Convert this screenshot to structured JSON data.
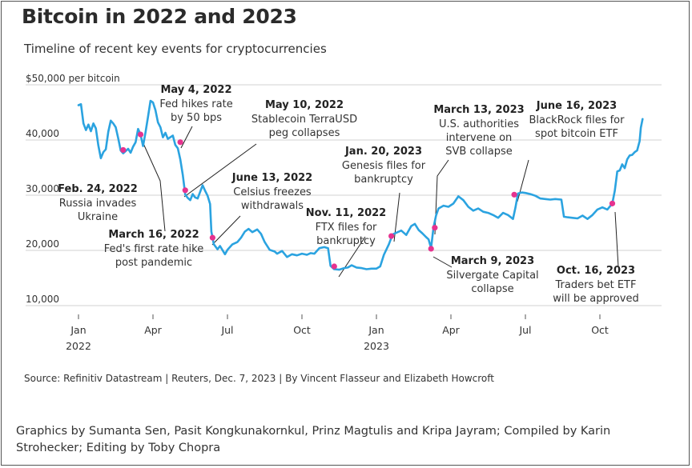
{
  "title": "Bitcoin in 2022 and 2023",
  "subtitle": "Timeline of recent key events for cryptocurrencies",
  "source": "Source: Refinitiv Datastream | Reuters, Dec. 7, 2023 | By Vincent Flasseur and Elizabeth Howcroft",
  "credits": "Graphics by Sumanta Sen, Pasit Kongkunakornkul, Prinz Magtulis and Kripa Jayram; Compiled by Karin Strohecker; Editing by Toby Chopra",
  "colors": {
    "line": "#2ba3e0",
    "event": "#e6338f",
    "grid": "#d0d0d0",
    "text": "#222222"
  },
  "chart_data": {
    "type": "line",
    "title": "Bitcoin in 2022 and 2023",
    "ylabel": "$50,000 per bitcoin",
    "ylim": [
      10000,
      50000
    ],
    "yticks": [
      {
        "value": 50000,
        "label": "$50,000 per bitcoin"
      },
      {
        "value": 40000,
        "label": "40,000"
      },
      {
        "value": 30000,
        "label": "30,000"
      },
      {
        "value": 20000,
        "label": "20,000"
      },
      {
        "value": 10000,
        "label": "10,000"
      }
    ],
    "xticks": [
      {
        "month": 0,
        "label": "Jan",
        "sub": "2022"
      },
      {
        "month": 3,
        "label": "Apr",
        "sub": ""
      },
      {
        "month": 6,
        "label": "Jul",
        "sub": ""
      },
      {
        "month": 9,
        "label": "Oct",
        "sub": ""
      },
      {
        "month": 12,
        "label": "Jan",
        "sub": "2023"
      },
      {
        "month": 15,
        "label": "Apr",
        "sub": ""
      },
      {
        "month": 18,
        "label": "Jul",
        "sub": ""
      },
      {
        "month": 21,
        "label": "Oct",
        "sub": ""
      }
    ],
    "series": [
      {
        "name": "Bitcoin price (USD)",
        "points": [
          [
            0.0,
            46300
          ],
          [
            0.1,
            46500
          ],
          [
            0.2,
            43000
          ],
          [
            0.3,
            41800
          ],
          [
            0.4,
            42800
          ],
          [
            0.5,
            41600
          ],
          [
            0.6,
            43000
          ],
          [
            0.7,
            42100
          ],
          [
            0.8,
            39000
          ],
          [
            0.9,
            36700
          ],
          [
            1.0,
            37800
          ],
          [
            1.1,
            38300
          ],
          [
            1.2,
            41500
          ],
          [
            1.3,
            43500
          ],
          [
            1.4,
            43000
          ],
          [
            1.5,
            42300
          ],
          [
            1.6,
            40300
          ],
          [
            1.7,
            38100
          ],
          [
            1.8,
            37600
          ],
          [
            2.0,
            38400
          ],
          [
            2.1,
            37700
          ],
          [
            2.2,
            38800
          ],
          [
            2.3,
            39600
          ],
          [
            2.4,
            42000
          ],
          [
            2.5,
            41000
          ],
          [
            2.6,
            38900
          ],
          [
            2.7,
            41400
          ],
          [
            2.8,
            44200
          ],
          [
            2.9,
            47100
          ],
          [
            3.0,
            46800
          ],
          [
            3.1,
            45400
          ],
          [
            3.2,
            43200
          ],
          [
            3.3,
            42300
          ],
          [
            3.4,
            40500
          ],
          [
            3.5,
            41300
          ],
          [
            3.6,
            40200
          ],
          [
            3.8,
            40800
          ],
          [
            3.9,
            39100
          ],
          [
            4.0,
            38500
          ],
          [
            4.1,
            36500
          ],
          [
            4.2,
            33700
          ],
          [
            4.3,
            30100
          ],
          [
            4.4,
            29500
          ],
          [
            4.5,
            29100
          ],
          [
            4.6,
            30200
          ],
          [
            4.7,
            29600
          ],
          [
            4.8,
            29400
          ],
          [
            5.0,
            31800
          ],
          [
            5.1,
            30800
          ],
          [
            5.2,
            29900
          ],
          [
            5.3,
            28400
          ],
          [
            5.35,
            23400
          ],
          [
            5.45,
            21100
          ],
          [
            5.6,
            20200
          ],
          [
            5.7,
            20800
          ],
          [
            5.9,
            19300
          ],
          [
            6.0,
            20100
          ],
          [
            6.2,
            21100
          ],
          [
            6.4,
            21500
          ],
          [
            6.55,
            22300
          ],
          [
            6.7,
            23400
          ],
          [
            6.85,
            23900
          ],
          [
            7.0,
            23300
          ],
          [
            7.2,
            23800
          ],
          [
            7.35,
            23000
          ],
          [
            7.5,
            21500
          ],
          [
            7.7,
            20100
          ],
          [
            7.9,
            19800
          ],
          [
            8.0,
            19400
          ],
          [
            8.2,
            19900
          ],
          [
            8.4,
            18800
          ],
          [
            8.6,
            19300
          ],
          [
            8.8,
            19100
          ],
          [
            9.0,
            19400
          ],
          [
            9.2,
            19200
          ],
          [
            9.35,
            19500
          ],
          [
            9.5,
            19400
          ],
          [
            9.7,
            20400
          ],
          [
            9.9,
            20600
          ],
          [
            10.05,
            20400
          ],
          [
            10.15,
            17200
          ],
          [
            10.3,
            16600
          ],
          [
            10.5,
            16500
          ],
          [
            10.7,
            16800
          ],
          [
            10.85,
            16900
          ],
          [
            11.0,
            17300
          ],
          [
            11.2,
            16900
          ],
          [
            11.4,
            16800
          ],
          [
            11.6,
            16600
          ],
          [
            11.8,
            16700
          ],
          [
            12.0,
            16700
          ],
          [
            12.15,
            17100
          ],
          [
            12.3,
            19200
          ],
          [
            12.5,
            21100
          ],
          [
            12.65,
            22900
          ],
          [
            12.8,
            23200
          ],
          [
            13.0,
            23600
          ],
          [
            13.2,
            22800
          ],
          [
            13.4,
            24400
          ],
          [
            13.55,
            24800
          ],
          [
            13.7,
            23700
          ],
          [
            13.85,
            23100
          ],
          [
            14.0,
            22400
          ],
          [
            14.1,
            22000
          ],
          [
            14.2,
            20400
          ],
          [
            14.3,
            24200
          ],
          [
            14.4,
            26300
          ],
          [
            14.5,
            27600
          ],
          [
            14.7,
            28100
          ],
          [
            14.9,
            27900
          ],
          [
            15.1,
            28500
          ],
          [
            15.3,
            29800
          ],
          [
            15.5,
            29100
          ],
          [
            15.7,
            27900
          ],
          [
            15.9,
            27200
          ],
          [
            16.1,
            27600
          ],
          [
            16.3,
            27000
          ],
          [
            16.5,
            26800
          ],
          [
            16.7,
            26400
          ],
          [
            16.9,
            25900
          ],
          [
            17.1,
            26800
          ],
          [
            17.3,
            26400
          ],
          [
            17.5,
            25700
          ],
          [
            17.6,
            27800
          ],
          [
            17.7,
            30300
          ],
          [
            17.85,
            30500
          ],
          [
            18.0,
            30400
          ],
          [
            18.2,
            30200
          ],
          [
            18.4,
            29900
          ],
          [
            18.6,
            29400
          ],
          [
            18.8,
            29300
          ],
          [
            19.0,
            29200
          ],
          [
            19.2,
            29300
          ],
          [
            19.45,
            29200
          ],
          [
            19.55,
            26100
          ],
          [
            19.7,
            26000
          ],
          [
            19.9,
            25900
          ],
          [
            20.1,
            25800
          ],
          [
            20.3,
            26300
          ],
          [
            20.5,
            25700
          ],
          [
            20.7,
            26400
          ],
          [
            20.9,
            27400
          ],
          [
            21.1,
            27800
          ],
          [
            21.3,
            27400
          ],
          [
            21.5,
            28500
          ],
          [
            21.6,
            30800
          ],
          [
            21.7,
            34300
          ],
          [
            21.8,
            34500
          ],
          [
            21.9,
            35600
          ],
          [
            22.0,
            34900
          ],
          [
            22.1,
            36500
          ],
          [
            22.2,
            37200
          ],
          [
            22.3,
            37300
          ],
          [
            22.4,
            37800
          ],
          [
            22.5,
            38100
          ],
          [
            22.6,
            39800
          ],
          [
            22.65,
            42200
          ],
          [
            22.72,
            43800
          ]
        ]
      }
    ],
    "annotations": [
      {
        "date": "Feb. 24, 2022",
        "text": [
          "Russia invades",
          "Ukraine"
        ],
        "month": 1.8,
        "value": 38200
      },
      {
        "date": "March 16, 2022",
        "text": [
          "Fed's first rate hike",
          "post pandemic"
        ],
        "month": 2.5,
        "value": 41000
      },
      {
        "date": "May 4, 2022",
        "text": [
          "Fed hikes rate",
          "by 50 bps"
        ],
        "month": 4.1,
        "value": 39600
      },
      {
        "date": "May 10, 2022",
        "text": [
          "Stablecoin TerraUSD",
          "peg collapses"
        ],
        "month": 4.3,
        "value": 30900
      },
      {
        "date": "June 13, 2022",
        "text": [
          "Celsius freezes",
          "withdrawals"
        ],
        "month": 5.4,
        "value": 22300
      },
      {
        "date": "Nov. 11, 2022",
        "text": [
          "FTX files for",
          "bankruptcy"
        ],
        "month": 10.3,
        "value": 17100
      },
      {
        "date": "Jan. 20, 2023",
        "text": [
          "Genesis files for",
          "bankruptcy"
        ],
        "month": 12.6,
        "value": 22600
      },
      {
        "date": "March 9, 2023",
        "text": [
          "Silvergate Capital",
          "collapse"
        ],
        "month": 14.2,
        "value": 20300
      },
      {
        "date": "March 13, 2023",
        "text": [
          "U.S. authorities",
          "intervene on",
          "SVB collapse"
        ],
        "month": 14.35,
        "value": 24100
      },
      {
        "date": "June 16, 2023",
        "text": [
          "BlackRock files for",
          "spot bitcoin ETF"
        ],
        "month": 17.55,
        "value": 30100
      },
      {
        "date": "Oct. 16, 2023",
        "text": [
          "Traders bet ETF",
          "will be approved"
        ],
        "month": 21.5,
        "value": 28500
      }
    ]
  }
}
